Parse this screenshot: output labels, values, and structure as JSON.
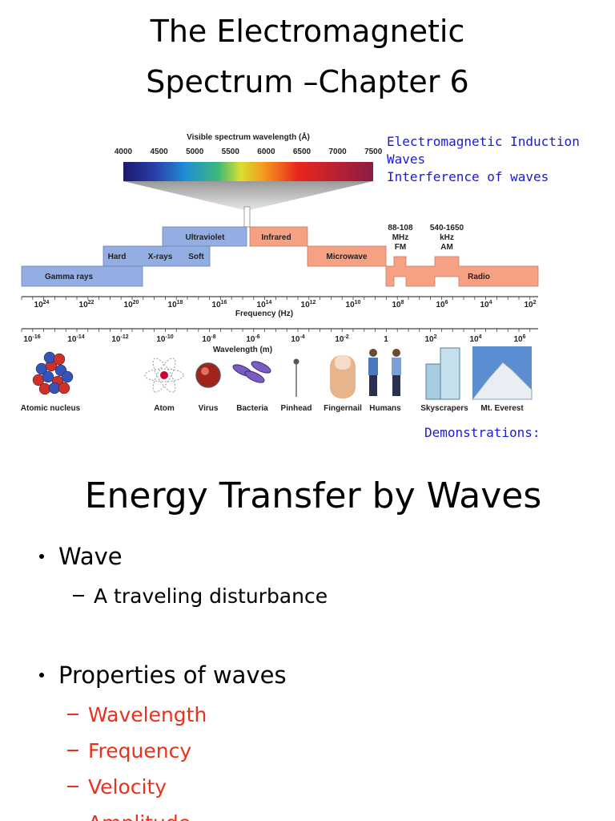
{
  "title": [
    "The Electromagnetic",
    "Spectrum –Chapter 6"
  ],
  "links": [
    "Electromagnetic Induction",
    "Waves",
    "Interference of waves"
  ],
  "diagram": {
    "visible_title": "Visible spectrum wavelength (Å)",
    "visible_ticks": [
      "4000",
      "4500",
      "5000",
      "5500",
      "6000",
      "6500",
      "7000",
      "7500"
    ],
    "bands": {
      "ultraviolet": "Ultraviolet",
      "infrared": "Infrared",
      "hard": "Hard",
      "xrays": "X-rays",
      "soft": "Soft",
      "microwave": "Microwave",
      "gamma": "Gamma rays",
      "radio": "Radio"
    },
    "fm": [
      "88-108",
      "MHz",
      "FM"
    ],
    "am": [
      "540-1650",
      "kHz",
      "AM"
    ],
    "frequency_ticks": [
      {
        "base": "10",
        "exp": "24"
      },
      {
        "base": "10",
        "exp": "22"
      },
      {
        "base": "10",
        "exp": "20"
      },
      {
        "base": "10",
        "exp": "18"
      },
      {
        "base": "10",
        "exp": "16"
      },
      {
        "base": "10",
        "exp": "14"
      },
      {
        "base": "10",
        "exp": "12"
      },
      {
        "base": "10",
        "exp": "10"
      },
      {
        "base": "10",
        "exp": "8"
      },
      {
        "base": "10",
        "exp": "6"
      },
      {
        "base": "10",
        "exp": "4"
      },
      {
        "base": "10",
        "exp": "2"
      }
    ],
    "frequency_title": "Frequency (Hz)",
    "wavelength_ticks": [
      {
        "base": "10",
        "exp": "-16"
      },
      {
        "base": "10",
        "exp": "-14"
      },
      {
        "base": "10",
        "exp": "-12"
      },
      {
        "base": "10",
        "exp": "-10"
      },
      {
        "base": "10",
        "exp": "-8"
      },
      {
        "base": "10",
        "exp": "-6"
      },
      {
        "base": "10",
        "exp": "-4"
      },
      {
        "base": "10",
        "exp": "-2"
      },
      {
        "base": "1"
      },
      {
        "base": "10",
        "exp": "2"
      },
      {
        "base": "10",
        "exp": "4"
      },
      {
        "base": "10",
        "exp": "6"
      }
    ],
    "wavelength_title": "Wavelength (m)",
    "objects": [
      "Atomic nucleus",
      "Atom",
      "Virus",
      "Bacteria",
      "Pinhead",
      "Fingernail",
      "Humans",
      "Skyscrapers",
      "Mt. Everest"
    ]
  },
  "demonstrations": "Demonstrations:",
  "section": {
    "heading": "Energy Transfer by Waves",
    "items": [
      {
        "text": "Wave",
        "sub": [
          "A traveling disturbance"
        ]
      },
      {
        "text": "Properties of waves",
        "sub": [
          "Wavelength",
          "Frequency",
          "Velocity",
          "Amplitude"
        ]
      }
    ]
  }
}
